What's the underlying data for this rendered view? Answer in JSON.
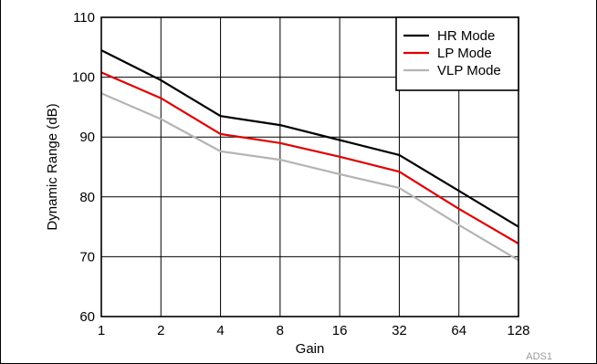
{
  "chart_data": {
    "type": "line",
    "title": "",
    "xlabel": "Gain",
    "ylabel": "Dynamic Range (dB)",
    "x_scale": "log2",
    "categories": [
      "1",
      "2",
      "4",
      "8",
      "16",
      "32",
      "64",
      "128"
    ],
    "x": [
      1,
      2,
      4,
      8,
      16,
      32,
      64,
      128
    ],
    "ylim": [
      60,
      110
    ],
    "yticks": [
      60,
      70,
      80,
      90,
      100,
      110
    ],
    "grid": true,
    "legend_position": "top-right",
    "series": [
      {
        "name": "HR Mode",
        "color": "#000000",
        "values": [
          104.5,
          99.5,
          93.5,
          92.0,
          89.5,
          87.0,
          81.0,
          75.0
        ]
      },
      {
        "name": "LP Mode",
        "color": "#e00000",
        "values": [
          100.8,
          96.5,
          90.5,
          89.0,
          86.7,
          84.2,
          78.0,
          72.2
        ]
      },
      {
        "name": "VLP Mode",
        "color": "#b4b4b4",
        "values": [
          97.3,
          93.0,
          87.6,
          86.2,
          83.8,
          81.5,
          75.3,
          69.4
        ]
      }
    ],
    "annotation": "ADS1"
  }
}
